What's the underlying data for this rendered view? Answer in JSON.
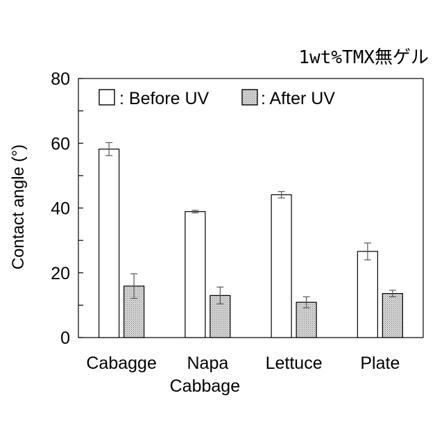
{
  "chart_data": {
    "type": "bar",
    "title": "1wt%TMX無ゲル",
    "xlabel": "",
    "ylabel": "Contact angle (°)",
    "ylim": [
      0,
      80
    ],
    "yticks": [
      0,
      20,
      40,
      60,
      80
    ],
    "grid": false,
    "legend_position": "top-left",
    "categories": [
      [
        "Cabagge"
      ],
      [
        "Napa",
        "Cabbage"
      ],
      [
        "Lettuce"
      ],
      [
        "Plate"
      ]
    ],
    "series": [
      {
        "name": ": Before UV",
        "fill": "#ffffff",
        "pattern": "none",
        "values": [
          58.2,
          38.9,
          44.1,
          26.6
        ],
        "errors": [
          2.0,
          0.4,
          1.0,
          2.6
        ]
      },
      {
        "name": ": After UV",
        "fill": "#c8c8c8",
        "pattern": "dots",
        "values": [
          15.9,
          13.0,
          10.9,
          13.6
        ],
        "errors": [
          3.8,
          2.6,
          1.7,
          1.0
        ]
      }
    ]
  }
}
